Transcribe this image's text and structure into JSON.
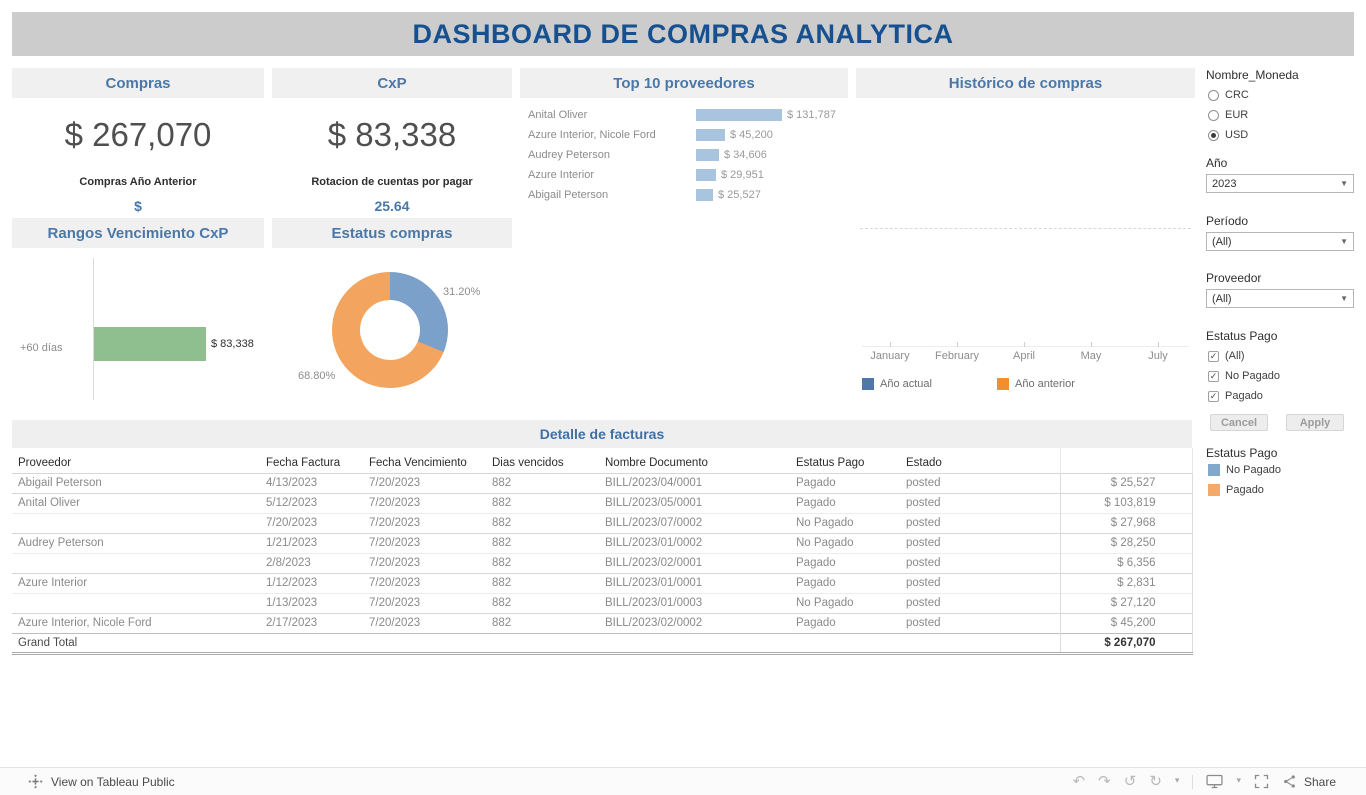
{
  "banner": {
    "title": "DASHBOARD DE COMPRAS ANALYTICA"
  },
  "kpis": {
    "compras": {
      "title": "Compras",
      "value": "$ 267,070",
      "sub_label": "Compras Año Anterior",
      "sub_value": "$"
    },
    "cxp": {
      "title": "CxP",
      "value": "$ 83,338",
      "sub_label": "Rotacion de cuentas por pagar",
      "sub_value": "25.64"
    }
  },
  "panels": {
    "top10_title": "Top 10 proveedores",
    "historico_title": "Histórico de compras",
    "rangos_title": "Rangos Vencimiento CxP",
    "estatus_title": "Estatus compras"
  },
  "chart_data": [
    {
      "id": "top10",
      "type": "bar",
      "orientation": "horizontal",
      "title": "Top 10 proveedores",
      "categories": [
        "Anital Oliver",
        "Azure Interior, Nicole Ford",
        "Audrey Peterson",
        "Azure Interior",
        "Abigail Peterson"
      ],
      "values": [
        131787,
        45200,
        34606,
        29951,
        25527
      ],
      "value_labels": [
        "$ 131,787",
        "$ 45,200",
        "$ 34,606",
        "$ 29,951",
        "$ 25,527"
      ],
      "bar_color": "#a9c4de"
    },
    {
      "id": "historico",
      "type": "line",
      "title": "Histórico de compras",
      "x": [
        "January",
        "February",
        "April",
        "May",
        "July"
      ],
      "series": [
        {
          "name": "Año actual",
          "color": "#4e79a7",
          "values": []
        },
        {
          "name": "Año anterior",
          "color": "#f28e2b",
          "values": []
        }
      ],
      "legend_position": "bottom",
      "note": "plot area empty in screenshot; dashed gridline visible"
    },
    {
      "id": "rangos",
      "type": "bar",
      "orientation": "horizontal",
      "title": "Rangos Vencimiento CxP",
      "categories": [
        "+60 días"
      ],
      "values": [
        83338
      ],
      "value_labels": [
        "$ 83,338"
      ],
      "xlim": [
        0,
        125000
      ],
      "bar_color": "#8fbf8f"
    },
    {
      "id": "estatus",
      "type": "donut",
      "title": "Estatus compras",
      "labels": [
        "31.20%",
        "68.80%"
      ],
      "values": [
        31.2,
        68.8
      ],
      "colors": [
        "#7ba0c9",
        "#f3a55f"
      ]
    }
  ],
  "filters": {
    "moneda": {
      "label": "Nombre_Moneda",
      "options": [
        "CRC",
        "EUR",
        "USD"
      ],
      "selected": "USD"
    },
    "anio": {
      "label": "Año",
      "value": "2023"
    },
    "periodo": {
      "label": "Período",
      "value": "(All)"
    },
    "proveedor": {
      "label": "Proveedor",
      "value": "(All)"
    },
    "estatus_pago": {
      "label": "Estatus Pago",
      "options": [
        "(All)",
        "No Pagado",
        "Pagado"
      ],
      "checked": [
        true,
        true,
        true
      ]
    },
    "buttons": {
      "cancel": "Cancel",
      "apply": "Apply"
    },
    "legend": {
      "label": "Estatus Pago",
      "items": [
        {
          "label": "No Pagado",
          "color": "#82a8cc"
        },
        {
          "label": "Pagado",
          "color": "#f4a968"
        }
      ]
    }
  },
  "table": {
    "title": "Detalle de facturas",
    "headers": [
      "Proveedor",
      "Fecha Factura",
      "Fecha Vencimiento",
      "Dias vencidos",
      "Nombre Documento",
      "Estatus Pago",
      "Estado",
      ""
    ],
    "rows": [
      {
        "proveedor": "Abigail Peterson",
        "fecha_factura": "4/13/2023",
        "fecha_vencimiento": "7/20/2023",
        "dias": "882",
        "documento": "BILL/2023/04/0001",
        "estatus": "Pagado",
        "estado": "posted",
        "monto": "$ 25,527"
      },
      {
        "proveedor": "Anital Oliver",
        "fecha_factura": "5/12/2023",
        "fecha_vencimiento": "7/20/2023",
        "dias": "882",
        "documento": "BILL/2023/05/0001",
        "estatus": "Pagado",
        "estado": "posted",
        "monto": "$ 103,819"
      },
      {
        "proveedor": "",
        "fecha_factura": "7/20/2023",
        "fecha_vencimiento": "7/20/2023",
        "dias": "882",
        "documento": "BILL/2023/07/0002",
        "estatus": "No Pagado",
        "estado": "posted",
        "monto": "$ 27,968"
      },
      {
        "proveedor": "Audrey Peterson",
        "fecha_factura": "1/21/2023",
        "fecha_vencimiento": "7/20/2023",
        "dias": "882",
        "documento": "BILL/2023/01/0002",
        "estatus": "No Pagado",
        "estado": "posted",
        "monto": "$ 28,250"
      },
      {
        "proveedor": "",
        "fecha_factura": "2/8/2023",
        "fecha_vencimiento": "7/20/2023",
        "dias": "882",
        "documento": "BILL/2023/02/0001",
        "estatus": "Pagado",
        "estado": "posted",
        "monto": "$ 6,356"
      },
      {
        "proveedor": "Azure Interior",
        "fecha_factura": "1/12/2023",
        "fecha_vencimiento": "7/20/2023",
        "dias": "882",
        "documento": "BILL/2023/01/0001",
        "estatus": "Pagado",
        "estado": "posted",
        "monto": "$ 2,831"
      },
      {
        "proveedor": "",
        "fecha_factura": "1/13/2023",
        "fecha_vencimiento": "7/20/2023",
        "dias": "882",
        "documento": "BILL/2023/01/0003",
        "estatus": "No Pagado",
        "estado": "posted",
        "monto": "$ 27,120"
      },
      {
        "proveedor": "Azure Interior, Nicole Ford",
        "fecha_factura": "2/17/2023",
        "fecha_vencimiento": "7/20/2023",
        "dias": "882",
        "documento": "BILL/2023/02/0002",
        "estatus": "Pagado",
        "estado": "posted",
        "monto": "$ 45,200"
      }
    ],
    "grand_total": {
      "label": "Grand Total",
      "monto": "$ 267,070"
    }
  },
  "footer": {
    "left_label": "View on Tableau Public",
    "share_label": "Share"
  },
  "colors": {
    "banner_bg": "#cccccc",
    "banner_text": "#17508f",
    "panel_header_bg": "#f0f0f0",
    "panel_header_text": "#4a78a8",
    "kpi_accent": "#4a78a8"
  }
}
